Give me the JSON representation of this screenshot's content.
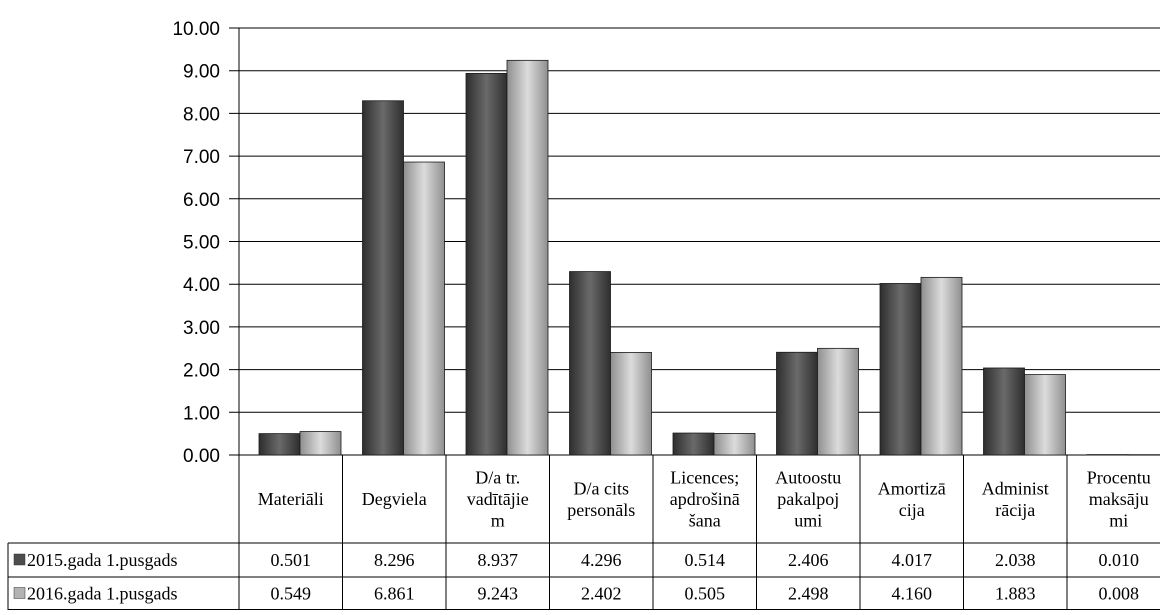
{
  "colors": {
    "series_2015": "#4d4d4d",
    "series_2016": "#b3b3b3",
    "grid": "#000000"
  },
  "chart_data": {
    "type": "bar",
    "title": "",
    "xlabel": "",
    "ylabel": "",
    "ylim": [
      0,
      10
    ],
    "y_ticks": [
      "0.00",
      "1.00",
      "2.00",
      "3.00",
      "4.00",
      "5.00",
      "6.00",
      "7.00",
      "8.00",
      "9.00",
      "10.00"
    ],
    "grid": true,
    "legend": "data-table",
    "categories": [
      [
        "Materiāli"
      ],
      [
        "Degviela"
      ],
      [
        "D/a tr.",
        "vadītājie",
        "m"
      ],
      [
        "D/a cits",
        "personāls"
      ],
      [
        "Licences;",
        "apdrošinā",
        "šana"
      ],
      [
        "Autoostu",
        "pakalpoj",
        "umi"
      ],
      [
        "Amortizā",
        "cija"
      ],
      [
        "Administ",
        "rācija"
      ],
      [
        "Procentu",
        "maksāju",
        "mi"
      ]
    ],
    "series": [
      {
        "name": "2015.gada 1.pusgads",
        "values": [
          0.501,
          8.296,
          8.937,
          4.296,
          0.514,
          2.406,
          4.017,
          2.038,
          0.01
        ],
        "labels": [
          "0.501",
          "8.296",
          "8.937",
          "4.296",
          "0.514",
          "2.406",
          "4.017",
          "2.038",
          "0.010"
        ]
      },
      {
        "name": "2016.gada 1.pusgads",
        "values": [
          0.549,
          6.861,
          9.243,
          2.402,
          0.505,
          2.498,
          4.16,
          1.883,
          0.008
        ],
        "labels": [
          "0.549",
          "6.861",
          "9.243",
          "2.402",
          "0.505",
          "2.498",
          "4.160",
          "1.883",
          "0.008"
        ]
      }
    ]
  }
}
